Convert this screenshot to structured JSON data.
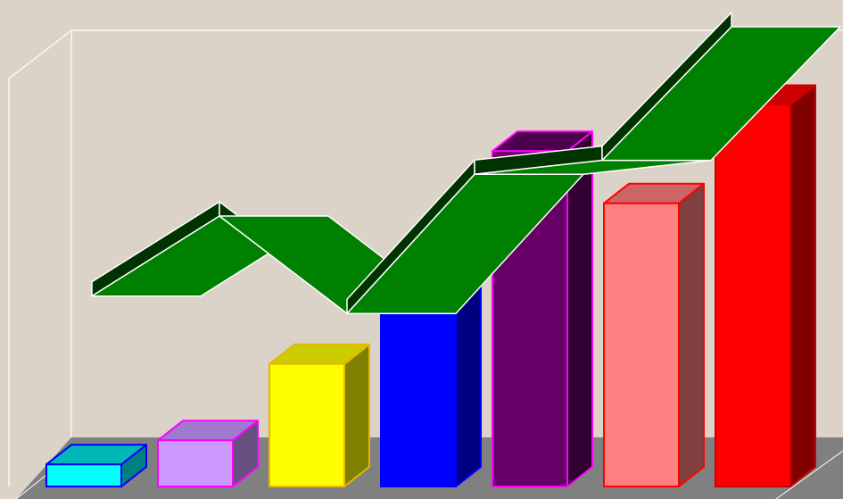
{
  "chart_data": {
    "type": "bar",
    "title": "",
    "xlabel": "",
    "ylabel": "",
    "grid": false,
    "legend": "none",
    "ylim": [
      0,
      100
    ],
    "values": [
      5.5,
      11.5,
      30.5,
      53,
      83.5,
      70.5,
      95
    ],
    "bar_colors": [
      {
        "front": "#00ffff",
        "top": "#00b8b8",
        "side": "#008080",
        "edge": "#0000ff"
      },
      {
        "front": "#cc99ff",
        "top": "#a07acc",
        "side": "#665080",
        "edge": "#ff00ff"
      },
      {
        "front": "#ffff00",
        "top": "#cccc00",
        "side": "#808000",
        "edge": "#e6b800"
      },
      {
        "front": "#0000ff",
        "top": "#0000cc",
        "side": "#000080",
        "edge": "#0000ff"
      },
      {
        "front": "#660066",
        "top": "#4d004d",
        "side": "#330033",
        "edge": "#ff00ff"
      },
      {
        "front": "#ff8080",
        "top": "#cc6666",
        "side": "#804040",
        "edge": "#ff0000"
      },
      {
        "front": "#ff0000",
        "top": "#cc0000",
        "side": "#800000",
        "edge": "#cc0000"
      }
    ],
    "ribbon": {
      "values": [
        17,
        40,
        12,
        52,
        56,
        91
      ],
      "colors": {
        "top": "#008000",
        "side": "#003300",
        "edge": "#ffffff"
      }
    },
    "colors": {
      "background": "#dcd3c8",
      "floor": "#808080",
      "wall_lines": "#ffffff"
    }
  }
}
